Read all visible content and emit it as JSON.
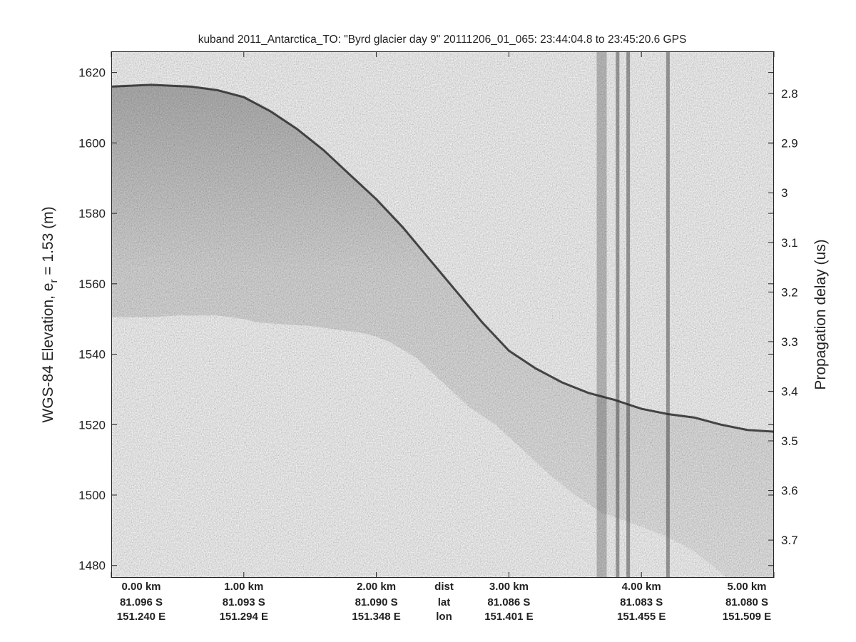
{
  "chart_data": {
    "type": "heatmap",
    "title": "kuband 2011_Antarctica_TO: \"Byrd glacier day 9\"  20111206_01_065: 23:44:04.8 to 23:45:20.6 GPS",
    "ylabel_main": "WGS-84 Elevation, e",
    "ylabel_sub": "r",
    "ylabel_tail": " = 1.53 (m)",
    "y2label": "Propagation delay (us)",
    "grid": false,
    "colormap": "gray",
    "xlim_km": [
      0,
      5
    ],
    "ylim_m": [
      1476.5,
      1626
    ],
    "y2lim_us": [
      2.715,
      3.776
    ],
    "yticks": [
      {
        "value": 1620,
        "label": "1620"
      },
      {
        "value": 1600,
        "label": "1600"
      },
      {
        "value": 1580,
        "label": "1580"
      },
      {
        "value": 1560,
        "label": "1560"
      },
      {
        "value": 1540,
        "label": "1540"
      },
      {
        "value": 1520,
        "label": "1520"
      },
      {
        "value": 1500,
        "label": "1500"
      },
      {
        "value": 1480,
        "label": "1480"
      }
    ],
    "y2ticks": [
      {
        "value": 2.8,
        "label": "2.8"
      },
      {
        "value": 2.9,
        "label": "2.9"
      },
      {
        "value": 3.0,
        "label": "3"
      },
      {
        "value": 3.1,
        "label": "3.1"
      },
      {
        "value": 3.2,
        "label": "3.2"
      },
      {
        "value": 3.3,
        "label": "3.3"
      },
      {
        "value": 3.4,
        "label": "3.4"
      },
      {
        "value": 3.5,
        "label": "3.5"
      },
      {
        "value": 3.6,
        "label": "3.6"
      },
      {
        "value": 3.7,
        "label": "3.7"
      }
    ],
    "xticks": [
      {
        "km": 0,
        "dist": "0.00 km",
        "lat": "81.096 S",
        "lon": "151.240 E"
      },
      {
        "km": 1,
        "dist": "1.00 km",
        "lat": "81.093 S",
        "lon": "151.294 E"
      },
      {
        "km": 2,
        "dist": "2.00 km",
        "lat": "81.090 S",
        "lon": "151.348 E"
      },
      {
        "km": 3,
        "dist": "3.00 km",
        "lat": "81.086 S",
        "lon": "151.401 E"
      },
      {
        "km": 4,
        "dist": "4.00 km",
        "lat": "81.083 S",
        "lon": "151.455 E"
      },
      {
        "km": 5,
        "dist": "5.00 km",
        "lat": "81.080 S",
        "lon": "151.509 E"
      }
    ],
    "row_labels": {
      "km": 2.5,
      "dist": "dist",
      "lat": "lat",
      "lon": "lon"
    },
    "surface_elevation": {
      "distance_km": [
        0,
        0.3,
        0.6,
        0.8,
        1.0,
        1.2,
        1.4,
        1.6,
        1.8,
        2.0,
        2.2,
        2.4,
        2.6,
        2.8,
        3.0,
        3.2,
        3.4,
        3.6,
        3.8,
        4.0,
        4.2,
        4.4,
        4.6,
        4.8,
        5.0
      ],
      "elevation_m": [
        1616,
        1616.5,
        1616,
        1615,
        1613,
        1609,
        1604,
        1598,
        1591,
        1584,
        1576,
        1567,
        1558,
        1549,
        1541,
        1536,
        1532,
        1529,
        1527,
        1524.5,
        1523,
        1522,
        1520,
        1518.5,
        1518
      ]
    },
    "data_floor_elevation": {
      "distance_km": [
        0,
        0.3,
        0.5,
        0.8,
        1.0,
        1.1,
        1.3,
        1.5,
        1.7,
        1.9,
        2.0,
        2.1,
        2.3,
        2.5,
        2.7,
        2.9,
        3.1,
        3.3,
        3.5,
        3.7,
        3.85,
        4.0,
        4.2,
        4.4,
        4.6,
        4.8,
        5.0
      ],
      "elevation_m": [
        1550.5,
        1550.5,
        1551,
        1551,
        1550,
        1549,
        1548.5,
        1548,
        1547,
        1546,
        1545,
        1543.5,
        1539,
        1532,
        1525,
        1520,
        1513,
        1506,
        1500,
        1495,
        1493,
        1491,
        1488,
        1484,
        1478,
        1471,
        1466
      ]
    },
    "dark_streaks_km": [
      3.7,
      3.82,
      3.9,
      4.2
    ]
  }
}
